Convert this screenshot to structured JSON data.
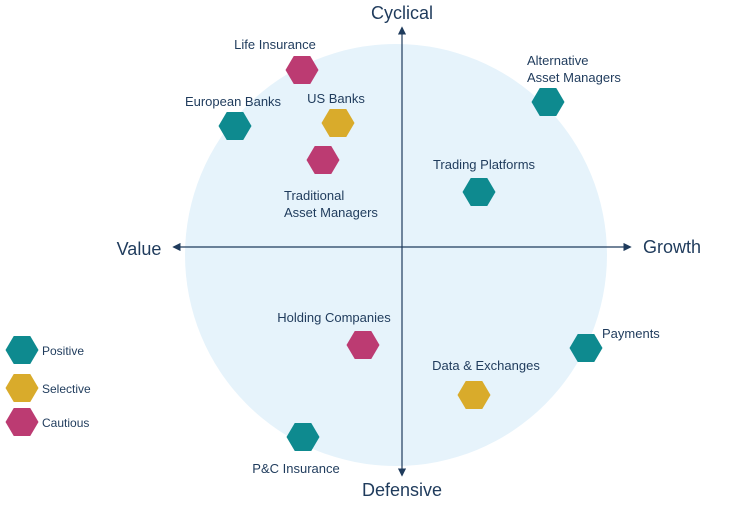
{
  "axes": {
    "top": "Cyclical",
    "bottom": "Defensive",
    "left": "Value",
    "right": "Growth"
  },
  "colors": {
    "positive": "#0e8a8f",
    "selective": "#d9ab2b",
    "cautious": "#bc3b72",
    "circle": "#e6f3fb",
    "axis": "#1f3b5c",
    "text": "#1f3b5c"
  },
  "legend": [
    {
      "id": "positive",
      "label": "Positive"
    },
    {
      "id": "selective",
      "label": "Selective"
    },
    {
      "id": "cautious",
      "label": "Cautious"
    }
  ],
  "sectors": [
    {
      "name": "life-insurance",
      "label_lines": [
        "Life Insurance"
      ],
      "status": "cautious"
    },
    {
      "name": "european-banks",
      "label_lines": [
        "European Banks"
      ],
      "status": "positive"
    },
    {
      "name": "us-banks",
      "label_lines": [
        "US Banks"
      ],
      "status": "selective"
    },
    {
      "name": "traditional-asset-managers",
      "label_lines": [
        "Traditional",
        "Asset Managers"
      ],
      "status": "cautious"
    },
    {
      "name": "alternative-asset-managers",
      "label_lines": [
        "Alternative",
        "Asset Managers"
      ],
      "status": "positive"
    },
    {
      "name": "trading-platforms",
      "label_lines": [
        "Trading Platforms"
      ],
      "status": "positive"
    },
    {
      "name": "holding-companies",
      "label_lines": [
        "Holding Companies"
      ],
      "status": "cautious"
    },
    {
      "name": "payments",
      "label_lines": [
        "Payments"
      ],
      "status": "positive"
    },
    {
      "name": "data-exchanges",
      "label_lines": [
        "Data & Exchanges"
      ],
      "status": "selective"
    },
    {
      "name": "pc-insurance",
      "label_lines": [
        "P&C Insurance"
      ],
      "status": "positive"
    }
  ]
}
